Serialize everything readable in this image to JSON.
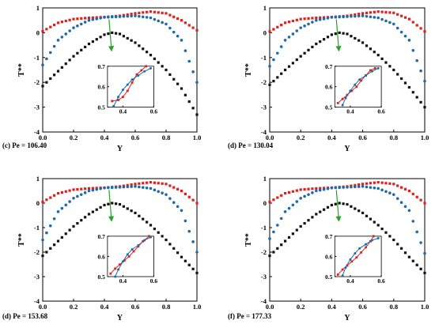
{
  "chart_data": [
    {
      "type": "scatter",
      "caption": "(c) Pe = 106.40",
      "xlabel": "Y",
      "ylabel": "T**",
      "xlim": [
        0,
        1
      ],
      "ylim": [
        -4,
        1
      ],
      "xticks": [
        "0.0",
        "0.2",
        "0.4",
        "0.6",
        "0.8",
        "1.0"
      ],
      "yticks": [
        "-4",
        "-3",
        "-2",
        "-1",
        "0",
        "1"
      ],
      "grid": false,
      "series": [
        {
          "color": "#e0201b",
          "marker": "square",
          "y_at_x": [
            [
              0.0,
              0.06
            ],
            [
              0.1,
              0.4
            ],
            [
              0.2,
              0.55
            ],
            [
              0.3,
              0.6
            ],
            [
              0.4,
              0.63
            ],
            [
              0.5,
              0.68
            ],
            [
              0.6,
              0.78
            ],
            [
              0.7,
              0.85
            ],
            [
              0.8,
              0.78
            ],
            [
              0.9,
              0.5
            ],
            [
              1.0,
              0.1
            ]
          ]
        },
        {
          "color": "#1f6aa8",
          "marker": "circle",
          "y_at_x": [
            [
              0.0,
              -1.3
            ],
            [
              0.1,
              -0.3
            ],
            [
              0.2,
              0.2
            ],
            [
              0.3,
              0.5
            ],
            [
              0.4,
              0.62
            ],
            [
              0.5,
              0.65
            ],
            [
              0.6,
              0.68
            ],
            [
              0.7,
              0.6
            ],
            [
              0.8,
              0.35
            ],
            [
              0.9,
              -0.3
            ],
            [
              1.0,
              -2.0
            ]
          ]
        },
        {
          "color": "#111111",
          "marker": "square",
          "y_at_x": [
            [
              0.0,
              -2.15
            ],
            [
              0.1,
              -1.55
            ],
            [
              0.2,
              -0.95
            ],
            [
              0.3,
              -0.45
            ],
            [
              0.4,
              -0.08
            ],
            [
              0.45,
              0.0
            ],
            [
              0.5,
              -0.05
            ],
            [
              0.6,
              -0.4
            ],
            [
              0.7,
              -0.9
            ],
            [
              0.8,
              -1.5
            ],
            [
              0.9,
              -2.25
            ],
            [
              1.0,
              -3.3
            ]
          ]
        }
      ],
      "inset": {
        "xlim": [
          0.3,
          0.6
        ],
        "ylim": [
          0.5,
          0.7
        ],
        "xticks": [
          "0.4",
          "0.6"
        ],
        "yticks": [
          "0.5",
          "0.6",
          "0.7"
        ],
        "series": [
          {
            "color": "#e0201b",
            "marker": "square",
            "y_at_x": [
              [
                0.33,
                0.53
              ],
              [
                0.37,
                0.535
              ],
              [
                0.4,
                0.55
              ],
              [
                0.43,
                0.58
              ],
              [
                0.46,
                0.62
              ],
              [
                0.49,
                0.66
              ],
              [
                0.52,
                0.68
              ],
              [
                0.55,
                0.7
              ]
            ]
          },
          {
            "color": "#1f6aa8",
            "marker": "circle",
            "y_at_x": [
              [
                0.34,
                0.505
              ],
              [
                0.37,
                0.55
              ],
              [
                0.4,
                0.585
              ],
              [
                0.43,
                0.61
              ],
              [
                0.46,
                0.635
              ],
              [
                0.5,
                0.655
              ],
              [
                0.54,
                0.675
              ],
              [
                0.58,
                0.69
              ]
            ]
          }
        ]
      }
    },
    {
      "type": "scatter",
      "caption": "(d) Pe = 130.04",
      "xlabel": "Y",
      "ylabel": "T**",
      "xlim": [
        0,
        1
      ],
      "ylim": [
        -4,
        1
      ],
      "xticks": [
        "0.0",
        "0.2",
        "0.4",
        "0.6",
        "0.8",
        "1.0"
      ],
      "yticks": [
        "-4",
        "-3",
        "-2",
        "-1",
        "0",
        "1"
      ],
      "grid": false,
      "series": [
        {
          "color": "#e0201b",
          "marker": "square",
          "y_at_x": [
            [
              0.0,
              0.05
            ],
            [
              0.1,
              0.4
            ],
            [
              0.2,
              0.55
            ],
            [
              0.3,
              0.6
            ],
            [
              0.4,
              0.63
            ],
            [
              0.5,
              0.68
            ],
            [
              0.6,
              0.78
            ],
            [
              0.7,
              0.85
            ],
            [
              0.8,
              0.8
            ],
            [
              0.9,
              0.55
            ],
            [
              1.0,
              0.05
            ]
          ]
        },
        {
          "color": "#1f6aa8",
          "marker": "circle",
          "y_at_x": [
            [
              0.0,
              -1.35
            ],
            [
              0.1,
              -0.3
            ],
            [
              0.2,
              0.2
            ],
            [
              0.3,
              0.5
            ],
            [
              0.4,
              0.62
            ],
            [
              0.5,
              0.65
            ],
            [
              0.6,
              0.68
            ],
            [
              0.7,
              0.6
            ],
            [
              0.8,
              0.35
            ],
            [
              0.9,
              -0.3
            ],
            [
              1.0,
              -1.95
            ]
          ]
        },
        {
          "color": "#111111",
          "marker": "square",
          "y_at_x": [
            [
              0.0,
              -2.1
            ],
            [
              0.1,
              -1.5
            ],
            [
              0.2,
              -0.95
            ],
            [
              0.3,
              -0.45
            ],
            [
              0.4,
              -0.08
            ],
            [
              0.45,
              0.0
            ],
            [
              0.5,
              -0.05
            ],
            [
              0.6,
              -0.4
            ],
            [
              0.7,
              -0.9
            ],
            [
              0.8,
              -1.5
            ],
            [
              0.9,
              -2.2
            ],
            [
              1.0,
              -3.0
            ]
          ]
        }
      ],
      "inset": {
        "xlim": [
          0.3,
          0.6
        ],
        "ylim": [
          0.5,
          0.7
        ],
        "xticks": [
          "0.4",
          "0.6"
        ],
        "yticks": [
          "0.5",
          "0.6",
          "0.7"
        ],
        "series": [
          {
            "color": "#e0201b",
            "marker": "square",
            "y_at_x": [
              [
                0.32,
                0.52
              ],
              [
                0.35,
                0.54
              ],
              [
                0.38,
                0.56
              ],
              [
                0.41,
                0.58
              ],
              [
                0.44,
                0.6
              ],
              [
                0.47,
                0.63
              ],
              [
                0.5,
                0.655
              ],
              [
                0.53,
                0.68
              ],
              [
                0.56,
                0.69
              ]
            ]
          },
          {
            "color": "#1f6aa8",
            "marker": "circle",
            "y_at_x": [
              [
                0.35,
                0.51
              ],
              [
                0.37,
                0.545
              ],
              [
                0.4,
                0.58
              ],
              [
                0.43,
                0.61
              ],
              [
                0.46,
                0.635
              ],
              [
                0.5,
                0.655
              ],
              [
                0.54,
                0.675
              ],
              [
                0.58,
                0.69
              ]
            ]
          }
        ]
      }
    },
    {
      "type": "scatter",
      "caption": "(d) Pe = 153.68",
      "xlabel": "Y",
      "ylabel": "T**",
      "xlim": [
        0,
        1
      ],
      "ylim": [
        -4,
        1
      ],
      "xticks": [
        "0.0",
        "0.2",
        "0.4",
        "0.6",
        "0.8",
        "1.0"
      ],
      "yticks": [
        "-4",
        "-3",
        "-2",
        "-1",
        "0",
        "1"
      ],
      "grid": false,
      "series": [
        {
          "color": "#e0201b",
          "marker": "square",
          "y_at_x": [
            [
              0.0,
              0.05
            ],
            [
              0.1,
              0.4
            ],
            [
              0.2,
              0.55
            ],
            [
              0.3,
              0.6
            ],
            [
              0.4,
              0.63
            ],
            [
              0.5,
              0.68
            ],
            [
              0.6,
              0.78
            ],
            [
              0.7,
              0.85
            ],
            [
              0.8,
              0.78
            ],
            [
              0.9,
              0.5
            ],
            [
              1.0,
              0.0
            ]
          ]
        },
        {
          "color": "#1f6aa8",
          "marker": "circle",
          "y_at_x": [
            [
              0.0,
              -1.5
            ],
            [
              0.1,
              -0.35
            ],
            [
              0.2,
              0.2
            ],
            [
              0.3,
              0.5
            ],
            [
              0.4,
              0.62
            ],
            [
              0.5,
              0.65
            ],
            [
              0.6,
              0.68
            ],
            [
              0.7,
              0.6
            ],
            [
              0.8,
              0.35
            ],
            [
              0.9,
              -0.3
            ],
            [
              1.0,
              -2.0
            ]
          ]
        },
        {
          "color": "#111111",
          "marker": "square",
          "y_at_x": [
            [
              0.0,
              -2.15
            ],
            [
              0.1,
              -1.55
            ],
            [
              0.2,
              -0.95
            ],
            [
              0.3,
              -0.45
            ],
            [
              0.4,
              -0.08
            ],
            [
              0.45,
              0.0
            ],
            [
              0.5,
              -0.05
            ],
            [
              0.6,
              -0.4
            ],
            [
              0.7,
              -0.9
            ],
            [
              0.8,
              -1.5
            ],
            [
              0.9,
              -2.2
            ],
            [
              1.0,
              -2.85
            ]
          ]
        }
      ],
      "inset": {
        "xlim": [
          0.3,
          0.6
        ],
        "ylim": [
          0.5,
          0.7
        ],
        "xticks": [
          "0.4",
          "0.6"
        ],
        "yticks": [
          "0.5",
          "0.6",
          "0.7"
        ],
        "series": [
          {
            "color": "#e0201b",
            "marker": "square",
            "y_at_x": [
              [
                0.32,
                0.515
              ],
              [
                0.35,
                0.54
              ],
              [
                0.38,
                0.56
              ],
              [
                0.41,
                0.58
              ],
              [
                0.44,
                0.6
              ],
              [
                0.47,
                0.625
              ],
              [
                0.5,
                0.65
              ],
              [
                0.53,
                0.675
              ],
              [
                0.57,
                0.7
              ]
            ]
          },
          {
            "color": "#1f6aa8",
            "marker": "circle",
            "y_at_x": [
              [
                0.35,
                0.5
              ],
              [
                0.37,
                0.535
              ],
              [
                0.4,
                0.575
              ],
              [
                0.43,
                0.61
              ],
              [
                0.46,
                0.635
              ],
              [
                0.5,
                0.655
              ],
              [
                0.54,
                0.68
              ],
              [
                0.58,
                0.695
              ]
            ]
          }
        ]
      }
    },
    {
      "type": "scatter",
      "caption": "(f) Pe = 177.33",
      "xlabel": "Y",
      "ylabel": "T**",
      "xlim": [
        0,
        1
      ],
      "ylim": [
        -4,
        1
      ],
      "xticks": [
        "0.0",
        "0.2",
        "0.4",
        "0.6",
        "0.8",
        "1.0"
      ],
      "yticks": [
        "-4",
        "-3",
        "-2",
        "-1",
        "0",
        "1"
      ],
      "grid": false,
      "series": [
        {
          "color": "#e0201b",
          "marker": "square",
          "y_at_x": [
            [
              0.0,
              0.05
            ],
            [
              0.1,
              0.4
            ],
            [
              0.2,
              0.55
            ],
            [
              0.3,
              0.6
            ],
            [
              0.4,
              0.63
            ],
            [
              0.5,
              0.68
            ],
            [
              0.6,
              0.78
            ],
            [
              0.7,
              0.85
            ],
            [
              0.8,
              0.78
            ],
            [
              0.9,
              0.5
            ],
            [
              1.0,
              0.0
            ]
          ]
        },
        {
          "color": "#1f6aa8",
          "marker": "circle",
          "y_at_x": [
            [
              0.0,
              -1.45
            ],
            [
              0.1,
              -0.35
            ],
            [
              0.2,
              0.2
            ],
            [
              0.3,
              0.5
            ],
            [
              0.4,
              0.62
            ],
            [
              0.5,
              0.65
            ],
            [
              0.6,
              0.68
            ],
            [
              0.7,
              0.6
            ],
            [
              0.8,
              0.35
            ],
            [
              0.9,
              -0.3
            ],
            [
              1.0,
              -2.05
            ]
          ]
        },
        {
          "color": "#111111",
          "marker": "square",
          "y_at_x": [
            [
              0.0,
              -2.15
            ],
            [
              0.1,
              -1.55
            ],
            [
              0.2,
              -0.95
            ],
            [
              0.3,
              -0.45
            ],
            [
              0.4,
              -0.08
            ],
            [
              0.45,
              0.0
            ],
            [
              0.5,
              -0.05
            ],
            [
              0.6,
              -0.4
            ],
            [
              0.7,
              -0.9
            ],
            [
              0.8,
              -1.5
            ],
            [
              0.9,
              -2.2
            ],
            [
              1.0,
              -2.85
            ]
          ]
        }
      ],
      "inset": {
        "xlim": [
          0.3,
          0.6
        ],
        "ylim": [
          0.5,
          0.7
        ],
        "xticks": [
          "0.4",
          "0.6"
        ],
        "yticks": [
          "0.5",
          "0.6",
          "0.7"
        ],
        "series": [
          {
            "color": "#e0201b",
            "marker": "square",
            "y_at_x": [
              [
                0.32,
                0.51
              ],
              [
                0.35,
                0.535
              ],
              [
                0.38,
                0.555
              ],
              [
                0.41,
                0.575
              ],
              [
                0.44,
                0.595
              ],
              [
                0.47,
                0.62
              ],
              [
                0.5,
                0.645
              ],
              [
                0.53,
                0.675
              ],
              [
                0.55,
                0.7
              ]
            ]
          },
          {
            "color": "#1f6aa8",
            "marker": "circle",
            "y_at_x": [
              [
                0.35,
                0.505
              ],
              [
                0.37,
                0.545
              ],
              [
                0.4,
                0.585
              ],
              [
                0.43,
                0.615
              ],
              [
                0.46,
                0.64
              ],
              [
                0.5,
                0.66
              ],
              [
                0.54,
                0.68
              ],
              [
                0.58,
                0.69
              ]
            ]
          }
        ]
      }
    }
  ]
}
